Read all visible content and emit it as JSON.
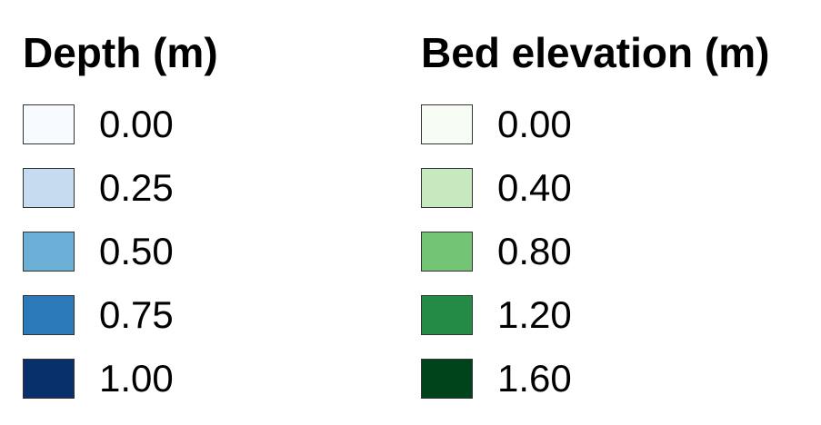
{
  "legends": [
    {
      "title": "Depth (m)",
      "entries": [
        {
          "label": "0.00",
          "color": "#f7fbff"
        },
        {
          "label": "0.25",
          "color": "#c6dbef"
        },
        {
          "label": "0.50",
          "color": "#6baed6"
        },
        {
          "label": "0.75",
          "color": "#2b79b9"
        },
        {
          "label": "1.00",
          "color": "#08306b"
        }
      ]
    },
    {
      "title": "Bed elevation (m)",
      "entries": [
        {
          "label": "0.00",
          "color": "#f7fcf5"
        },
        {
          "label": "0.40",
          "color": "#c7e9c0"
        },
        {
          "label": "0.80",
          "color": "#74c476"
        },
        {
          "label": "1.20",
          "color": "#238b45"
        },
        {
          "label": "1.60",
          "color": "#00441b"
        }
      ]
    }
  ]
}
